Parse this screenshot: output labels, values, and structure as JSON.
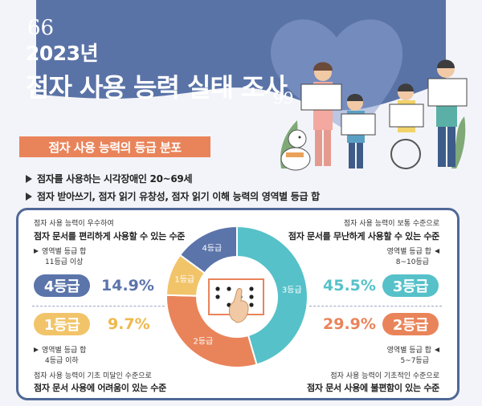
{
  "header": {
    "open_quote": "66",
    "year": "2023년",
    "title": "점자 사용 능력 실태 조사",
    "close_quote": "99"
  },
  "section_title": "점자 사용 능력의 등급 분포",
  "bullets": [
    "점자를 사용하는 시각장애인 20~69세",
    "점자 받아쓰기, 점자 읽기 유창성, 점자 읽기 이해 능력의 영역별 등급 합"
  ],
  "grades": {
    "g4": {
      "desc_small": "점자 사용 능력이 우수하여",
      "desc_strong": "점자 문서를 편리하게 사용할 수 있는 수준",
      "criteria_1": "영역별 등급 합",
      "criteria_2": "11등급 이상",
      "label": "4등급",
      "percent": "14.9%",
      "value": 14.9,
      "color": "#5b74aa"
    },
    "g1": {
      "desc_small": "점자 사용 능력이 기초 미달인 수준으로",
      "desc_strong": "점자 문서 사용에 어려움이 있는 수준",
      "criteria_1": "영역별 등급 합",
      "criteria_2": "4등급 이하",
      "label": "1등급",
      "percent": "9.7%",
      "value": 9.7,
      "color": "#f2c46a"
    },
    "g3": {
      "desc_small": "점자 사용 능력이 보통 수준으로",
      "desc_strong": "점자 문서를 무난하게 사용할 수 있는 수준",
      "criteria_1": "영역별 등급 합",
      "criteria_2": "8~10등급",
      "label": "3등급",
      "percent": "45.5%",
      "value": 45.5,
      "color": "#56c1c9"
    },
    "g2": {
      "desc_small": "점자 사용 능력이 기초적인 수준으로",
      "desc_strong": "점자 문서 사용에 불편함이 있는 수준",
      "criteria_1": "영역별 등급 합",
      "criteria_2": "5~7등급",
      "label": "2등급",
      "percent": "29.9%",
      "value": 29.9,
      "color": "#e9845a"
    }
  },
  "colors": {
    "header": "#5a73a7",
    "accent": "#e9845a",
    "bg": "#f3f4f9"
  }
}
